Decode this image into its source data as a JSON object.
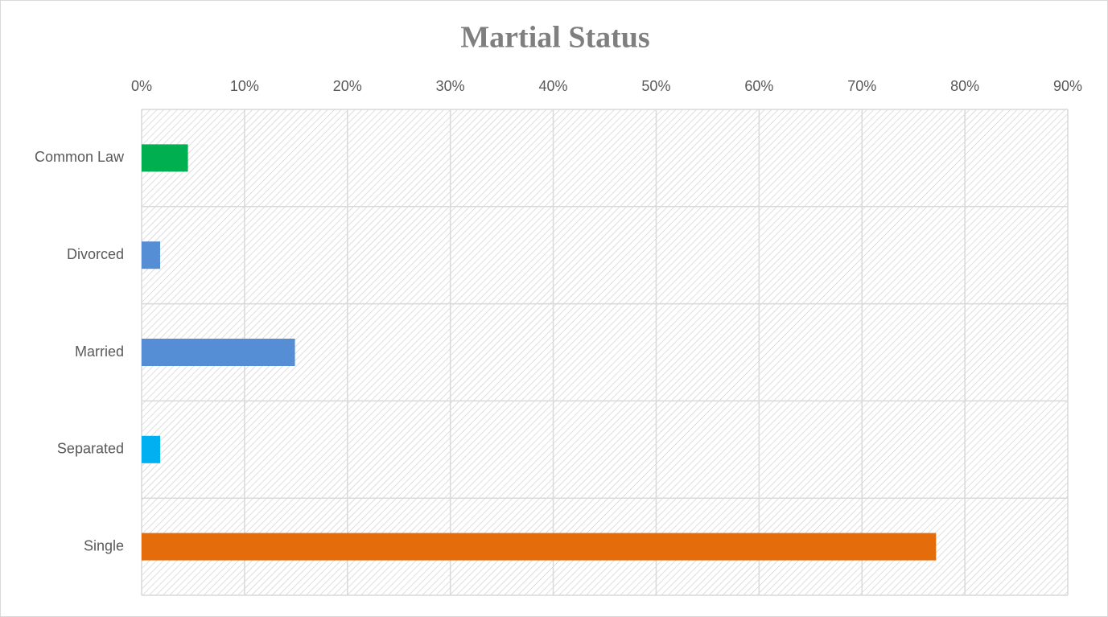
{
  "chart_data": {
    "type": "barh",
    "title": "Martial Status",
    "categories": [
      "Common Law",
      "Divorced",
      "Married",
      "Separated",
      "Single"
    ],
    "values": [
      4.5,
      1.8,
      14.9,
      1.8,
      77.2
    ],
    "colors": [
      "#00b050",
      "#558ed5",
      "#558ed5",
      "#00b0f0",
      "#e46c0a"
    ],
    "xlim": [
      0,
      90
    ],
    "xticks": [
      {
        "value": 0,
        "label": "0%"
      },
      {
        "value": 10,
        "label": "10%"
      },
      {
        "value": 20,
        "label": "20%"
      },
      {
        "value": 30,
        "label": "30%"
      },
      {
        "value": 40,
        "label": "40%"
      },
      {
        "value": 50,
        "label": "50%"
      },
      {
        "value": 60,
        "label": "60%"
      },
      {
        "value": 70,
        "label": "70%"
      },
      {
        "value": 80,
        "label": "80%"
      },
      {
        "value": 90,
        "label": "90%"
      }
    ],
    "grid": true
  }
}
